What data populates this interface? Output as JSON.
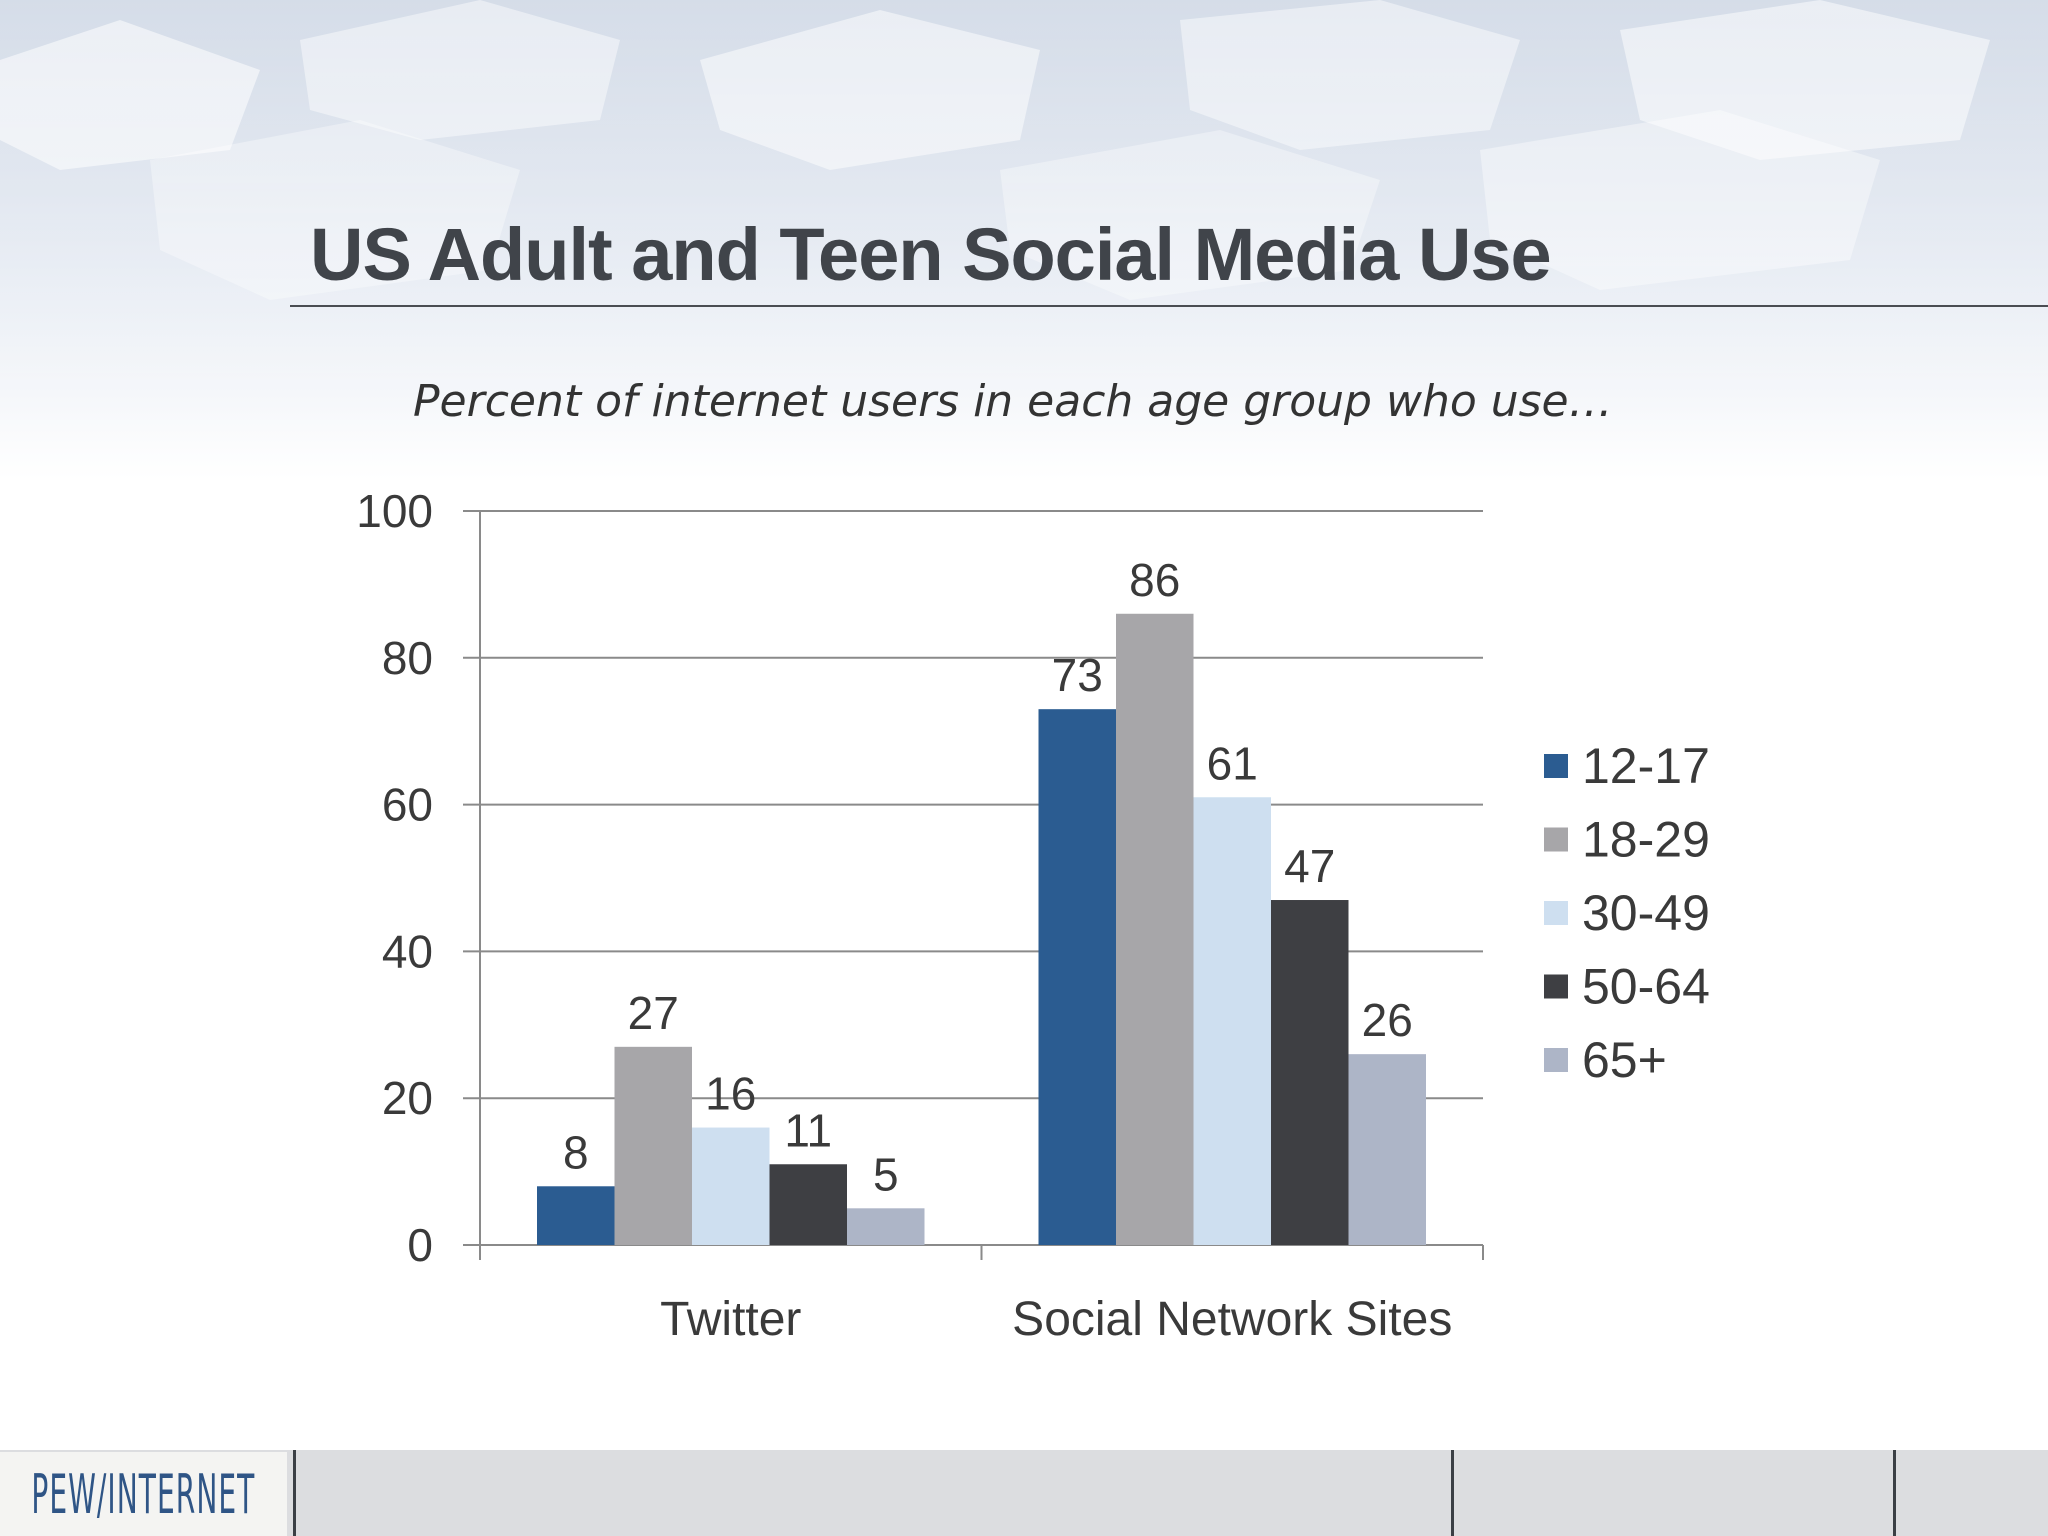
{
  "slide": {
    "title": "US Adult and Teen Social Media Use"
  },
  "footer": {
    "logo_text": "PEW/INTERNET"
  },
  "colors": {
    "title": "#40444a",
    "series": [
      "#2b5c91",
      "#a7a6a9",
      "#cedff0",
      "#3e3f43",
      "#adb5c7"
    ]
  },
  "chart_data": {
    "type": "bar",
    "title": "Percent of internet users in each age group who use…",
    "categories": [
      "Twitter",
      "Social Network Sites"
    ],
    "series": [
      {
        "name": "12-17",
        "values": [
          8,
          73
        ]
      },
      {
        "name": "18-29",
        "values": [
          27,
          86
        ]
      },
      {
        "name": "30-49",
        "values": [
          16,
          61
        ]
      },
      {
        "name": "50-64",
        "values": [
          11,
          47
        ]
      },
      {
        "name": "65+",
        "values": [
          5,
          26
        ]
      }
    ],
    "ylim": [
      0,
      100
    ],
    "yticks": [
      0,
      20,
      40,
      60,
      80,
      100
    ],
    "grid": true,
    "legend_position": "right",
    "data_labels": true
  }
}
